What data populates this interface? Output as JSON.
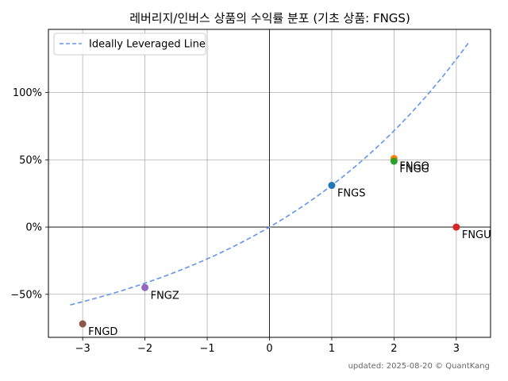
{
  "chart_data": {
    "type": "scatter",
    "title": "레버리지/인버스 상품의 수익률 분포 (기초 상품: FNGS)",
    "xlabel": "",
    "ylabel": "",
    "xlim": [
      -3.55,
      3.55
    ],
    "ylim": [
      -82,
      147
    ],
    "xticks": [
      -3,
      -2,
      -1,
      0,
      1,
      2,
      3
    ],
    "xtick_labels": [
      "−3",
      "−2",
      "−1",
      "0",
      "1",
      "2",
      "3"
    ],
    "yticks": [
      -50,
      0,
      50,
      100
    ],
    "ytick_labels": [
      "−50%",
      "0%",
      "50%",
      "100%"
    ],
    "grid": true,
    "legend": {
      "placement": "top-left",
      "entries": [
        "Ideally Leveraged Line"
      ]
    },
    "line": {
      "name": "Ideally Leveraged Line",
      "color": "#6495ED",
      "style": "dashed",
      "base_return_pct": 31.0,
      "x_range": [
        -3.2,
        3.2
      ]
    },
    "points": [
      {
        "label": "FNGD",
        "x": -3,
        "y": -72,
        "color": "#8c564b"
      },
      {
        "label": "FNGZ",
        "x": -2,
        "y": -45,
        "color": "#9467bd"
      },
      {
        "label": "FNGS",
        "x": 1,
        "y": 31,
        "color": "#1f77b4"
      },
      {
        "label": "FNGO",
        "x": 2,
        "y": 51,
        "color": "#ff7f0e"
      },
      {
        "label": "FNGG",
        "x": 2,
        "y": 49,
        "color": "#2ca02c"
      },
      {
        "label": "FNGU",
        "x": 3,
        "y": 0,
        "color": "#d62728"
      }
    ]
  },
  "footer": "updated: 2025-08-20 © QuantKang"
}
